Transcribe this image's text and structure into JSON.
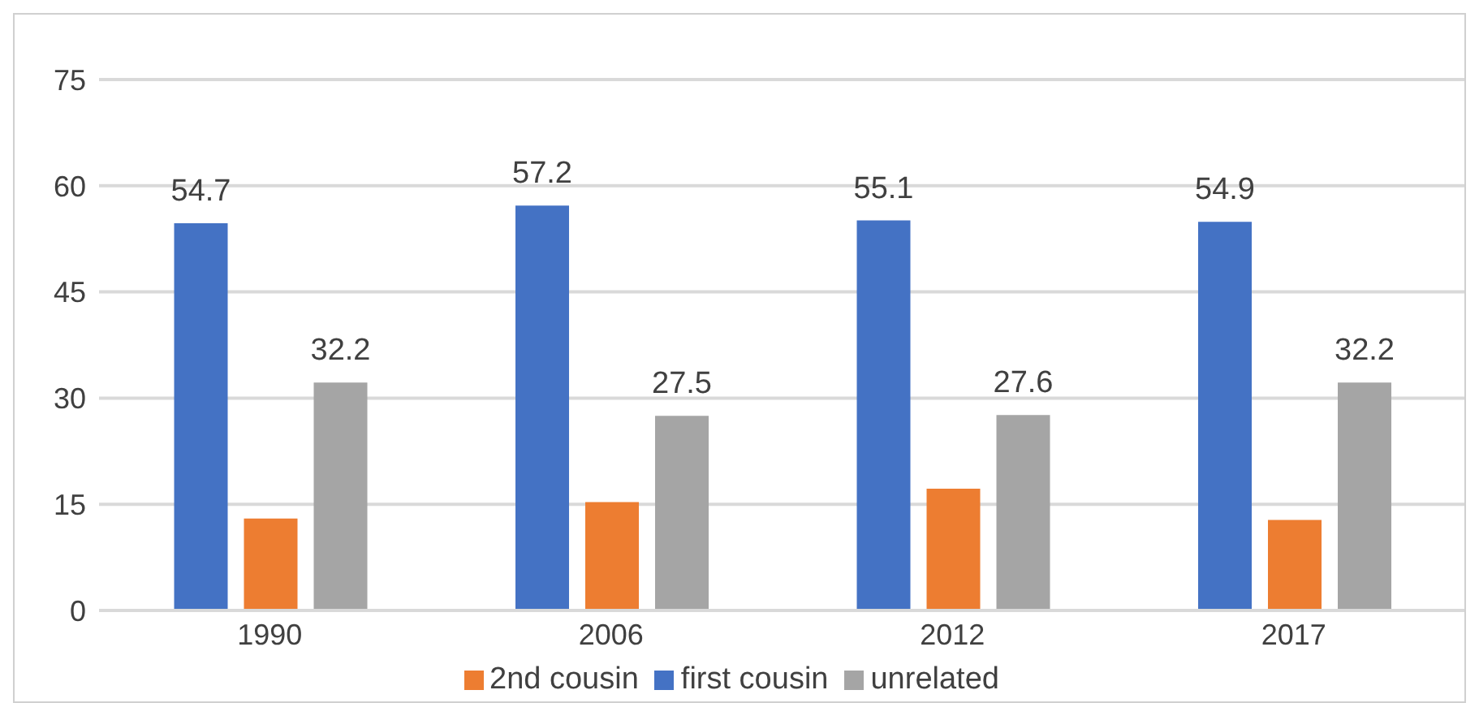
{
  "chart_data": {
    "type": "bar",
    "categories": [
      "1990",
      "2006",
      "2012",
      "2017"
    ],
    "series": [
      {
        "name": "first cousin",
        "color": "#4472c4",
        "values": [
          54.7,
          57.2,
          55.1,
          54.9
        ],
        "value_labels": [
          "54.7",
          "57.2",
          "55.1",
          "54.9"
        ]
      },
      {
        "name": "2nd cousin",
        "color": "#ed7d31",
        "values": [
          13.0,
          15.3,
          17.2,
          12.8
        ]
      },
      {
        "name": "unrelated",
        "color": "#a5a5a5",
        "values": [
          32.2,
          27.5,
          27.6,
          32.2
        ],
        "value_labels": [
          "32.2",
          "27.5",
          "27.6",
          "32.2"
        ]
      }
    ],
    "ylim": [
      0,
      75
    ],
    "yticks": [
      0,
      15,
      30,
      45,
      60,
      75
    ],
    "grid": "y",
    "legend": "bottom"
  }
}
